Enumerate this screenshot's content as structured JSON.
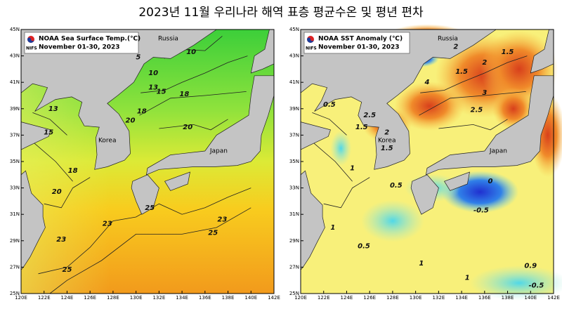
{
  "title": "2023년 11월 우리나라 해역 표층 평균수온 및 평년 편차",
  "axes": {
    "lat_labels": [
      "45N",
      "43N",
      "41N",
      "39N",
      "37N",
      "35N",
      "33N",
      "31N",
      "29N",
      "27N",
      "25N"
    ],
    "lon_labels": [
      "120E",
      "122E",
      "124E",
      "126E",
      "128E",
      "130E",
      "132E",
      "134E",
      "136E",
      "138E",
      "140E",
      "142E"
    ]
  },
  "panels": [
    {
      "legend_title": "NOAA Sea Surface Temp.(℃)",
      "logo": "NIFS",
      "period": "November 01-30, 2023",
      "places": [
        "Russia",
        "Korea",
        "Japan"
      ],
      "contour_labels": [
        "5",
        "10",
        "10",
        "13",
        "13",
        "15",
        "15",
        "18",
        "18",
        "18",
        "20",
        "20",
        "20",
        "23",
        "23",
        "23",
        "25",
        "25",
        "25"
      ]
    },
    {
      "legend_title": "NOAA SST Anomaly (℃)",
      "logo": "NIFS",
      "period": "November 01-30, 2023",
      "places": [
        "Russia",
        "Korea",
        "Japan"
      ],
      "contour_labels": [
        "2",
        "1.5",
        "2",
        "1.5",
        "2.5",
        "3",
        "4",
        "2.5",
        "0.5",
        "1.5",
        "1.5",
        "1",
        "2",
        "0",
        "-0.5",
        "0.5",
        "1",
        "1",
        "0.5",
        "0.9",
        "-0.5",
        "1"
      ]
    }
  ]
}
